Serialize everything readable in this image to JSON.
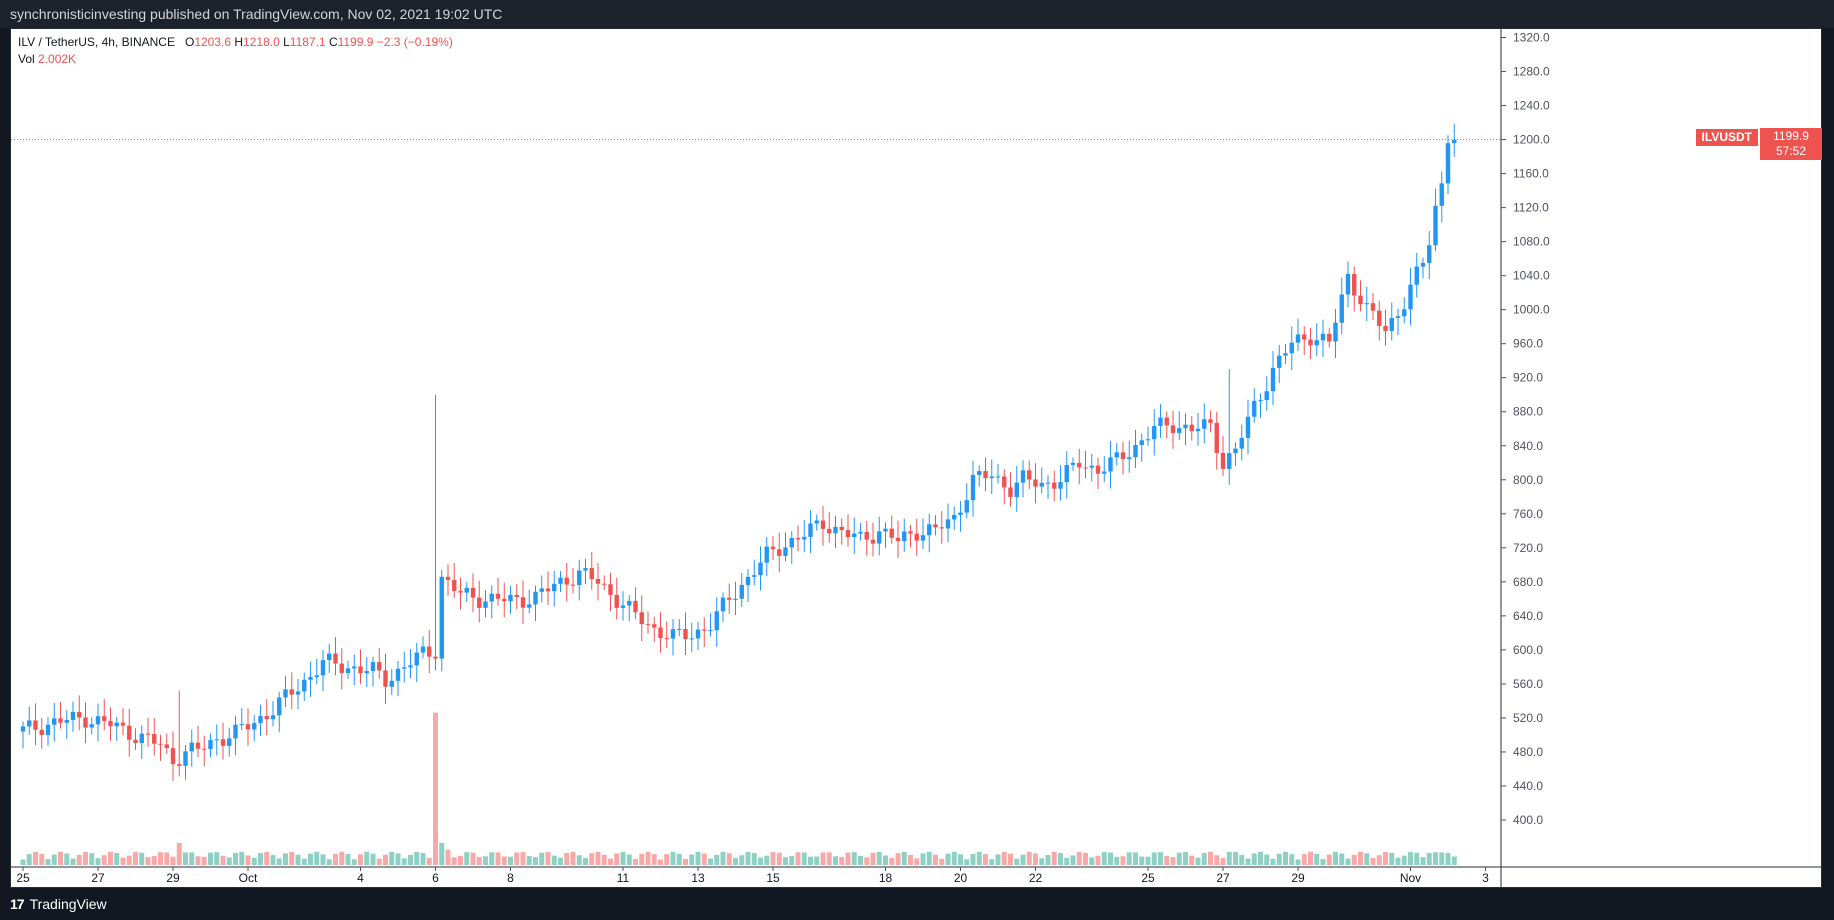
{
  "header": {
    "attribution": "synchronisticinvesting published on TradingView.com, Nov 02, 2021 19:02 UTC"
  },
  "legend": {
    "symbol": "ILV / TetherUS, 4h, BINANCE",
    "open_key": "O",
    "open": "1203.6",
    "high_key": "H",
    "high": "1218.0",
    "low_key": "L",
    "low": "1187.1",
    "close_key": "C",
    "close": "1199.9",
    "change": "−2.3 (−0.19%)",
    "vol_label": "Vol",
    "vol_value": "2.002K"
  },
  "price_tag": {
    "symbol": "ILVUSDT",
    "price": "1199.9",
    "countdown": "57:52"
  },
  "footer": {
    "brand": "TradingView",
    "logo_glyph": "17"
  },
  "colors": {
    "up": "#2196f3",
    "down": "#ef5350",
    "vol_up": "#8ed1c4",
    "vol_down": "#f7a9a7"
  },
  "chart_data": {
    "type": "candlestick",
    "interval": "4h",
    "ylim": [
      380,
      1330
    ],
    "y_ticks": [
      "1320.0",
      "1280.0",
      "1240.0",
      "1200.0",
      "1160.0",
      "1120.0",
      "1080.0",
      "1040.0",
      "1000.0",
      "960.0",
      "920.0",
      "880.0",
      "840.0",
      "800.0",
      "760.0",
      "720.0",
      "680.0",
      "640.0",
      "600.0",
      "560.0",
      "520.0",
      "480.0",
      "440.0",
      "400.0"
    ],
    "x_ticks": [
      {
        "label": "25",
        "bar": 0
      },
      {
        "label": "27",
        "bar": 12
      },
      {
        "label": "29",
        "bar": 24
      },
      {
        "label": "Oct",
        "bar": 36
      },
      {
        "label": "4",
        "bar": 54
      },
      {
        "label": "6",
        "bar": 66
      },
      {
        "label": "8",
        "bar": 78
      },
      {
        "label": "11",
        "bar": 96
      },
      {
        "label": "13",
        "bar": 108
      },
      {
        "label": "15",
        "bar": 120
      },
      {
        "label": "18",
        "bar": 138
      },
      {
        "label": "20",
        "bar": 150
      },
      {
        "label": "22",
        "bar": 162
      },
      {
        "label": "25",
        "bar": 180
      },
      {
        "label": "27",
        "bar": 192
      },
      {
        "label": "29",
        "bar": 204
      },
      {
        "label": "Nov",
        "bar": 222
      },
      {
        "label": "3",
        "bar": 234
      }
    ],
    "last_price": 1199.9,
    "keypoints": [
      [
        0,
        505
      ],
      [
        5,
        515
      ],
      [
        10,
        520
      ],
      [
        14,
        512
      ],
      [
        18,
        500
      ],
      [
        22,
        488
      ],
      [
        24,
        470
      ],
      [
        26,
        480
      ],
      [
        28,
        482
      ],
      [
        31,
        495
      ],
      [
        34,
        502
      ],
      [
        37,
        515
      ],
      [
        40,
        530
      ],
      [
        43,
        550
      ],
      [
        46,
        570
      ],
      [
        48,
        585
      ],
      [
        52,
        580
      ],
      [
        56,
        575
      ],
      [
        58,
        565
      ],
      [
        61,
        580
      ],
      [
        64,
        595
      ],
      [
        66,
        600
      ],
      [
        67,
        685
      ],
      [
        70,
        665
      ],
      [
        74,
        660
      ],
      [
        78,
        658
      ],
      [
        82,
        662
      ],
      [
        86,
        680
      ],
      [
        89,
        690
      ],
      [
        92,
        680
      ],
      [
        95,
        660
      ],
      [
        98,
        640
      ],
      [
        101,
        625
      ],
      [
        104,
        615
      ],
      [
        107,
        618
      ],
      [
        110,
        630
      ],
      [
        113,
        660
      ],
      [
        116,
        685
      ],
      [
        119,
        710
      ],
      [
        122,
        725
      ],
      [
        125,
        735
      ],
      [
        128,
        750
      ],
      [
        131,
        738
      ],
      [
        134,
        730
      ],
      [
        137,
        740
      ],
      [
        140,
        728
      ],
      [
        143,
        740
      ],
      [
        146,
        740
      ],
      [
        149,
        755
      ],
      [
        152,
        800
      ],
      [
        155,
        805
      ],
      [
        158,
        790
      ],
      [
        160,
        800
      ],
      [
        163,
        795
      ],
      [
        166,
        800
      ],
      [
        169,
        820
      ],
      [
        172,
        812
      ],
      [
        175,
        822
      ],
      [
        178,
        840
      ],
      [
        181,
        860
      ],
      [
        184,
        865
      ],
      [
        187,
        860
      ],
      [
        190,
        862
      ],
      [
        192,
        820
      ],
      [
        194,
        835
      ],
      [
        197,
        885
      ],
      [
        200,
        930
      ],
      [
        203,
        960
      ],
      [
        206,
        970
      ],
      [
        209,
        960
      ],
      [
        212,
        1040
      ],
      [
        215,
        1000
      ],
      [
        218,
        975
      ],
      [
        221,
        1010
      ],
      [
        224,
        1055
      ],
      [
        225,
        1080
      ],
      [
        226,
        1120
      ],
      [
        227,
        1150
      ],
      [
        228,
        1205
      ],
      [
        229,
        1199.9
      ]
    ],
    "volume_spikes": [
      {
        "bar": 25,
        "level": 1.0
      },
      {
        "bar": 66,
        "level": 4.2
      },
      {
        "bar": 67,
        "level": 1.0
      },
      {
        "bar": 68,
        "level": 0.7
      },
      {
        "bar": 193,
        "level": 0.6
      },
      {
        "bar": 210,
        "level": 0.6
      },
      {
        "bar": 225,
        "level": 0.55
      },
      {
        "bar": 228,
        "level": 0.55
      }
    ]
  }
}
